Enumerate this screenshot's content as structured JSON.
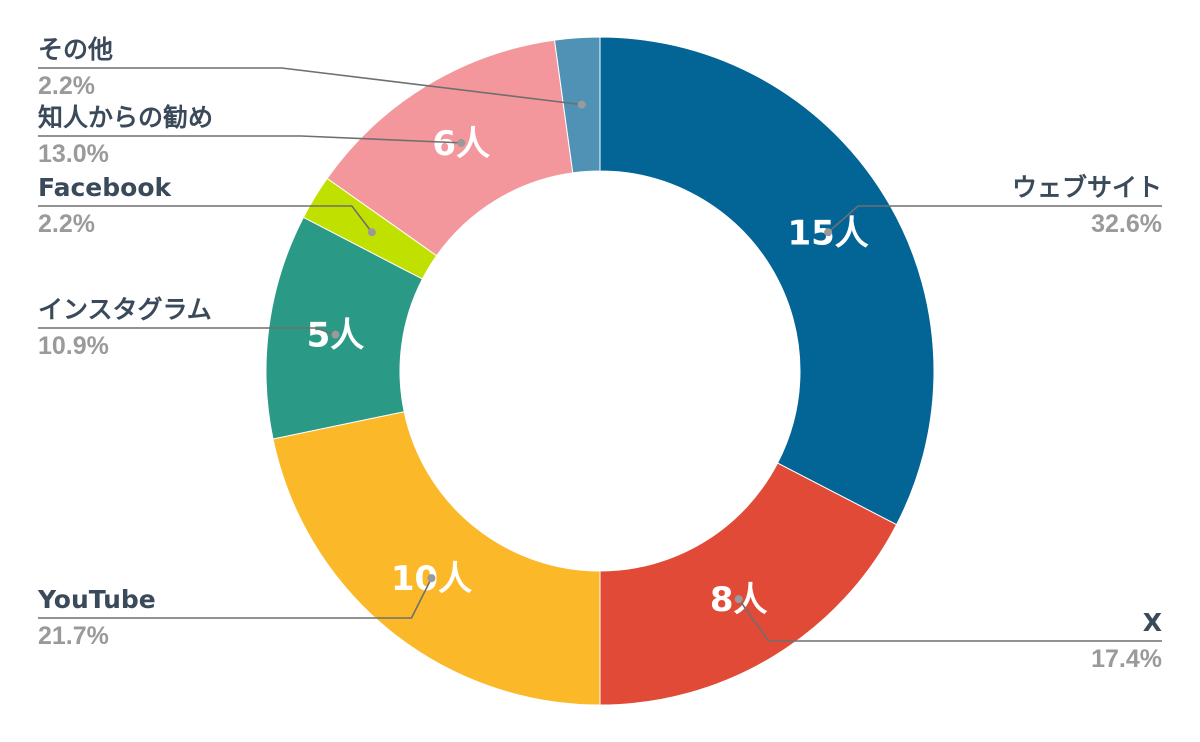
{
  "chart_data": {
    "type": "pie",
    "donut": true,
    "title": "",
    "categories": [
      "ウェブサイト",
      "X",
      "YouTube",
      "インスタグラム",
      "Facebook",
      "知人からの勧め",
      "その他"
    ],
    "values": [
      15,
      8,
      10,
      5,
      1,
      6,
      1
    ],
    "count_labels": [
      "15人",
      "8人",
      "10人",
      "5人",
      "",
      "6人",
      ""
    ],
    "percent_labels": [
      "32.6%",
      "17.4%",
      "21.7%",
      "10.9%",
      "2.2%",
      "13.0%",
      "2.2%"
    ],
    "colors": [
      "#036496",
      "#e04a36",
      "#fbb829",
      "#2a9985",
      "#c0e000",
      "#f4979c",
      "#4f92b6"
    ],
    "label_sides": [
      "right",
      "right",
      "left",
      "left",
      "left",
      "left",
      "left"
    ],
    "legend": "none",
    "grid": false
  }
}
